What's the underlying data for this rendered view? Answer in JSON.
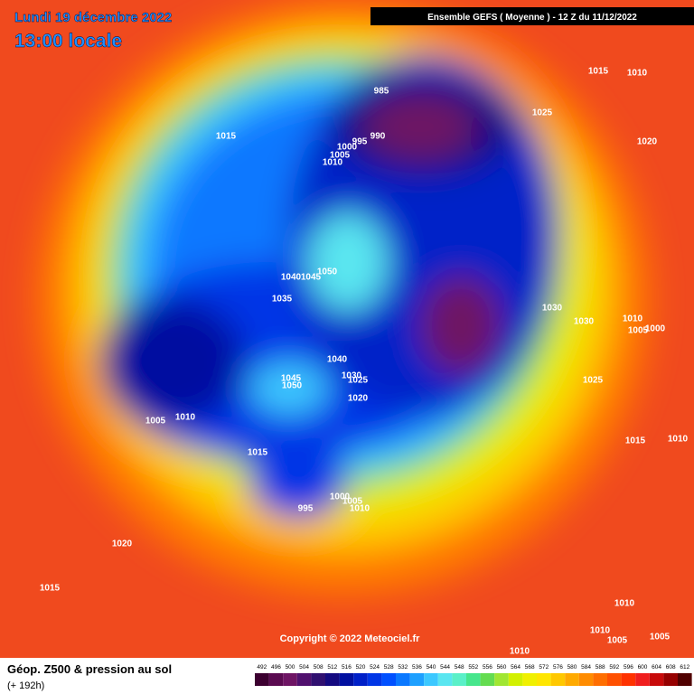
{
  "header": {
    "date": "Lundi 19 décembre 2022",
    "time": "13:00 locale",
    "model": "Ensemble GEFS  ( Moyenne )  -  12 Z du 11/12/2022"
  },
  "copyright": "Copyright © 2022 Meteociel.fr",
  "footer": {
    "title": "Géop. Z500 & pression au sol",
    "lead": "(+ 192h)"
  },
  "legend": [
    {
      "label": "492",
      "color": "#3c0030"
    },
    {
      "label": "496",
      "color": "#5a0a50"
    },
    {
      "label": "500",
      "color": "#6e1464"
    },
    {
      "label": "504",
      "color": "#50106e"
    },
    {
      "label": "508",
      "color": "#301070"
    },
    {
      "label": "512",
      "color": "#140a80"
    },
    {
      "label": "516",
      "color": "#0010a0"
    },
    {
      "label": "520",
      "color": "#0020c8"
    },
    {
      "label": "524",
      "color": "#0036e6"
    },
    {
      "label": "528",
      "color": "#0050ff"
    },
    {
      "label": "532",
      "color": "#0a78ff"
    },
    {
      "label": "536",
      "color": "#1ea0ff"
    },
    {
      "label": "540",
      "color": "#3cc8ff"
    },
    {
      "label": "544",
      "color": "#5ae6f0"
    },
    {
      "label": "548",
      "color": "#5af0c8"
    },
    {
      "label": "552",
      "color": "#46e68c"
    },
    {
      "label": "556",
      "color": "#64dc50"
    },
    {
      "label": "560",
      "color": "#a0e632"
    },
    {
      "label": "564",
      "color": "#d2f000"
    },
    {
      "label": "568",
      "color": "#f0f000"
    },
    {
      "label": "572",
      "color": "#ffe600"
    },
    {
      "label": "576",
      "color": "#ffc800"
    },
    {
      "label": "580",
      "color": "#ffaa00"
    },
    {
      "label": "584",
      "color": "#ff8c00"
    },
    {
      "label": "588",
      "color": "#ff6e00"
    },
    {
      "label": "592",
      "color": "#ff5000"
    },
    {
      "label": "596",
      "color": "#ff3200"
    },
    {
      "label": "600",
      "color": "#f01e1e"
    },
    {
      "label": "604",
      "color": "#c80a0a"
    },
    {
      "label": "608",
      "color": "#960000"
    },
    {
      "label": "612",
      "color": "#500000"
    }
  ],
  "isobars": [
    "985",
    "990",
    "995",
    "1000",
    "1005",
    "1010",
    "1015",
    "1015",
    "1010",
    "1025",
    "1020",
    "1040",
    "1045",
    "1050",
    "1035",
    "1030",
    "1030",
    "1010",
    "1005",
    "1000",
    "1040",
    "1030",
    "1025",
    "1020",
    "1045",
    "1050",
    "1025",
    "1015",
    "1010",
    "1005",
    "1010",
    "1015",
    "995",
    "1000",
    "1005",
    "1010",
    "1020",
    "1015",
    "1010",
    "1010",
    "1005",
    "1005",
    "1010"
  ]
}
